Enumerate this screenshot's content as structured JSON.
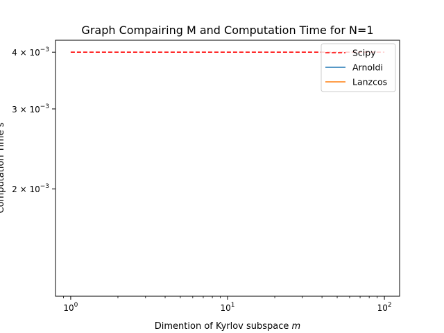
{
  "chart_data": {
    "type": "line",
    "title": "Graph Compairing M and Computation Time for N=1",
    "xlabel": "Dimention of Kyrlov subspace",
    "xlabel_var": "m",
    "ylabel": "Computation Time s",
    "xscale": "log",
    "yscale": "log",
    "xlim": [
      0.8,
      125
    ],
    "ylim": [
      0.00116,
      0.00425
    ],
    "grid": false,
    "legend_position": "top-right",
    "x_ticks": [
      {
        "value": 1,
        "base": "10",
        "exp": "0"
      },
      {
        "value": 10,
        "base": "10",
        "exp": "1"
      },
      {
        "value": 100,
        "base": "10",
        "exp": "2"
      }
    ],
    "y_ticks": [
      {
        "value": 0.004,
        "mantissa": "4",
        "base": "10",
        "exp": "−3"
      },
      {
        "value": 0.003,
        "mantissa": "3",
        "base": "10",
        "exp": "−3"
      },
      {
        "value": 0.002,
        "mantissa": "2",
        "base": "10",
        "exp": "−3"
      }
    ],
    "series": [
      {
        "name": "Scipy",
        "color": "#ff0000",
        "style": "dashed",
        "x": [
          1,
          100
        ],
        "y": [
          0.004,
          0.004
        ]
      },
      {
        "name": "Arnoldi",
        "color": "#1f77b4",
        "style": "solid",
        "x": [],
        "y": []
      },
      {
        "name": "Lanzcos",
        "color": "#ff7f0e",
        "style": "solid",
        "x": [],
        "y": []
      }
    ]
  }
}
